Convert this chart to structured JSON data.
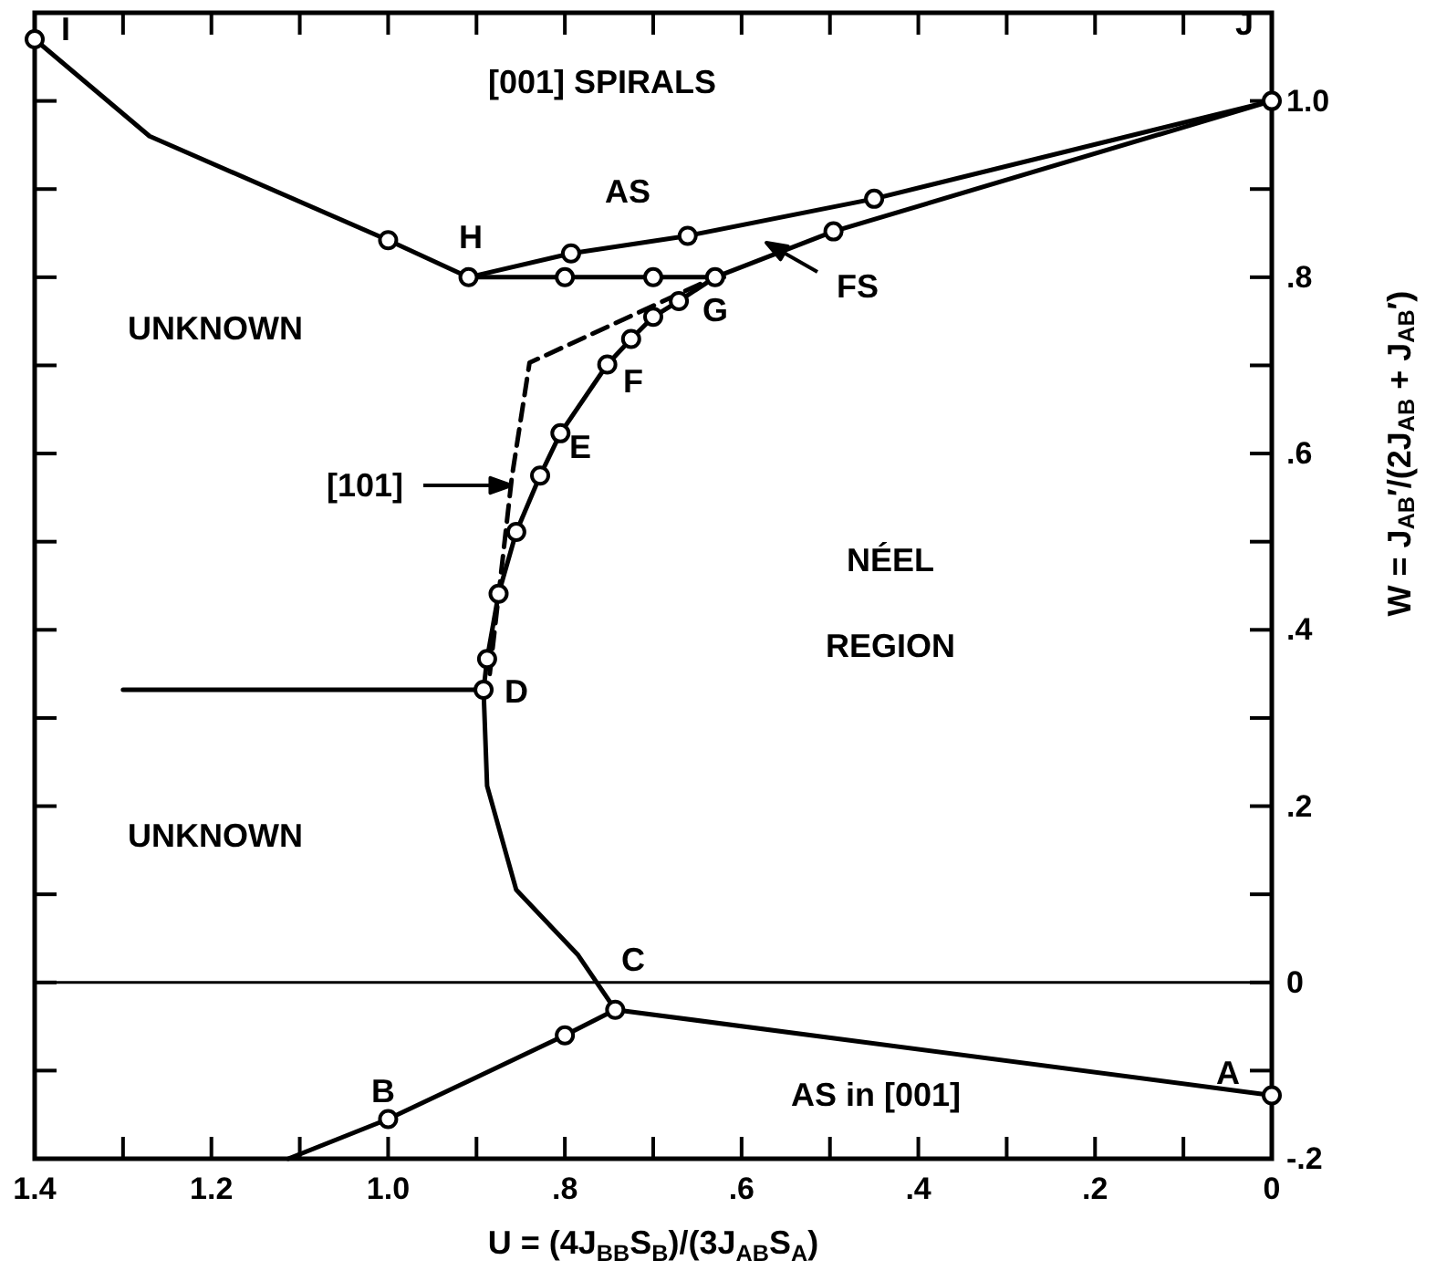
{
  "chart_data": {
    "type": "line",
    "xlabel": "U = (4J$_{BB}$S$_{B}$)/(3J$_{AB}$S$_{A}$)",
    "ylabel": "W = J$_{AB}$′/(2J$_{AB}$ + J$_{AB}$′)",
    "xlim": [
      1.4,
      0
    ],
    "ylim": [
      -0.2,
      1.1
    ],
    "xticks": [
      1.4,
      {
        "value": 1.3,
        "label": null
      },
      {
        "value": 1.2,
        "label": "1.2"
      },
      {
        "value": 1.1,
        "label": null
      },
      {
        "value": 1.0,
        "label": "1.0"
      },
      {
        "value": 0.9,
        "label": null
      },
      {
        "value": 0.8,
        "label": ".8"
      },
      {
        "value": 0.7,
        "label": null
      },
      {
        "value": 0.6,
        "label": ".6"
      },
      {
        "value": 0.5,
        "label": null
      },
      {
        "value": 0.4,
        "label": ".4"
      },
      {
        "value": 0.3,
        "label": null
      },
      {
        "value": 0.2,
        "label": ".2"
      },
      {
        "value": 0.1,
        "label": null
      },
      0
    ],
    "yticks": [
      {
        "value": -0.2,
        "label": "-.2"
      },
      {
        "value": -0.1,
        "label": null
      },
      0,
      {
        "value": 0.1,
        "label": null
      },
      {
        "value": 0.2,
        "label": ".2"
      },
      {
        "value": 0.3,
        "label": null
      },
      {
        "value": 0.4,
        "label": ".4"
      },
      {
        "value": 0.5,
        "label": null
      },
      {
        "value": 0.6,
        "label": ".6"
      },
      {
        "value": 0.7,
        "label": null
      },
      {
        "value": 0.8,
        "label": ".8"
      },
      {
        "value": 0.9,
        "label": null
      },
      {
        "value": 1.0,
        "label": "1.0"
      }
    ],
    "series": [
      {
        "color": "#000000",
        "x": [
          1.4,
          1.27,
          1.0,
          0.909
        ],
        "values": [
          1.07,
          0.96,
          0.842,
          0.8
        ]
      },
      {
        "color": "#000000",
        "x": [
          0.909,
          0.793,
          0.661,
          0.45,
          0
        ],
        "values": [
          0.8,
          0.827,
          0.847,
          0.889,
          1.0
        ]
      },
      {
        "color": "#000000",
        "x": [
          0.909,
          0.62
        ],
        "values": [
          0.8,
          0.8
        ]
      },
      {
        "color": "#000000",
        "x": [
          0.892,
          0.888,
          0.875,
          0.855,
          0.828,
          0.805,
          0.752,
          0.725,
          0.7,
          0.671,
          0.63,
          0.496,
          0
        ],
        "values": [
          0.332,
          0.367,
          0.441,
          0.511,
          0.575,
          0.623,
          0.701,
          0.73,
          0.755,
          0.773,
          0.8,
          0.852,
          1.0
        ]
      },
      {
        "color": "#000000",
        "x": [
          0.892,
          0.888,
          0.855,
          0.785,
          0.743
        ],
        "values": [
          0.332,
          0.223,
          0.105,
          0.031,
          -0.031
        ]
      },
      {
        "color": "#000000",
        "x": [
          0.743,
          0
        ],
        "values": [
          -0.031,
          -0.128
        ]
      },
      {
        "color": "#000000",
        "x": [
          0.743,
          0.8,
          1.0,
          1.113
        ],
        "values": [
          -0.031,
          -0.06,
          -0.155,
          -0.2
        ]
      },
      {
        "color": "#000000",
        "x": [
          1.3,
          0.892
        ],
        "values": [
          0.332,
          0.332
        ]
      },
      {
        "color": "#000000",
        "line_style": "dashed",
        "x": [
          0.885,
          0.86,
          0.84,
          0.63
        ],
        "values": [
          0.35,
          0.573,
          0.703,
          0.8
        ]
      },
      {
        "type": "scatter",
        "color": "#000000",
        "marker": "circle",
        "x": [
          1.4,
          1.0,
          0.909,
          0.793,
          0.661,
          0.45,
          0,
          0.8,
          0.7,
          0.496,
          0.63,
          0.888,
          0.875,
          0.855,
          0.828,
          0.805,
          0.752,
          0.725,
          0.7,
          0.671,
          0.892,
          0.743,
          0.8,
          1.0,
          0
        ],
        "values": [
          1.07,
          0.842,
          0.8,
          0.827,
          0.847,
          0.889,
          1.0,
          0.8,
          0.8,
          0.852,
          0.8,
          0.367,
          0.441,
          0.511,
          0.575,
          0.623,
          0.701,
          0.73,
          0.755,
          0.773,
          0.332,
          -0.031,
          -0.06,
          -0.155,
          -0.128
        ]
      }
    ],
    "ref_lines": [
      {
        "axis": "y",
        "value": 0,
        "color": "#000000"
      }
    ],
    "annotations": [
      "[001] SPIRALS",
      "AS",
      "UNKNOWN",
      "UNKNOWN",
      "NÉEL",
      "REGION",
      "AS in [001]",
      "[101]",
      "FS",
      "I",
      "H",
      "J",
      "G",
      "F",
      "E",
      "D",
      "C",
      "B",
      "A"
    ]
  }
}
